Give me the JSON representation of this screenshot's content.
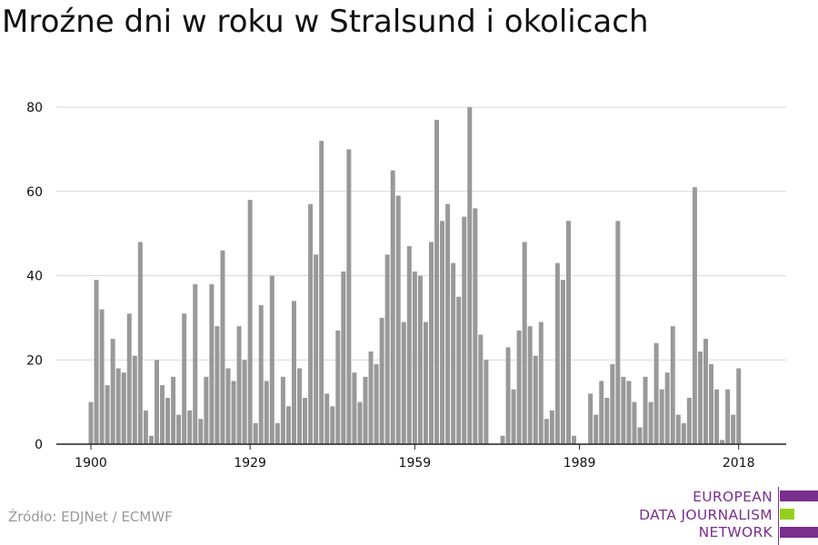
{
  "title": "Mroźne dni w roku w Stralsund i okolicach",
  "source": "Źródło: EDJNet / ECMWF",
  "logo": {
    "lines": [
      "EUROPEAN",
      "DATA JOURNALISM",
      "NETWORK"
    ],
    "colors": [
      "#7a2e8e",
      "#95d01c",
      "#7a2e8e"
    ]
  },
  "colors": {
    "bar": "#999999",
    "grid": "#d9d9d9",
    "axis": "#222222",
    "text": "#111111"
  },
  "chart_data": {
    "type": "bar",
    "title": "Mroźne dni w roku w Stralsund i okolicach",
    "xlabel": "",
    "ylabel": "",
    "ylim": [
      0,
      80
    ],
    "yticks": [
      0,
      20,
      40,
      60,
      80
    ],
    "xticks": [
      1900,
      1929,
      1959,
      1989,
      2018
    ],
    "grid": true,
    "categories": [
      1900,
      1901,
      1902,
      1903,
      1904,
      1905,
      1906,
      1907,
      1908,
      1909,
      1910,
      1911,
      1912,
      1913,
      1914,
      1915,
      1916,
      1917,
      1918,
      1919,
      1920,
      1921,
      1922,
      1923,
      1924,
      1925,
      1926,
      1927,
      1928,
      1929,
      1930,
      1931,
      1932,
      1933,
      1934,
      1935,
      1936,
      1937,
      1938,
      1939,
      1940,
      1941,
      1942,
      1943,
      1944,
      1945,
      1946,
      1947,
      1948,
      1949,
      1950,
      1951,
      1952,
      1953,
      1954,
      1955,
      1956,
      1957,
      1958,
      1959,
      1960,
      1961,
      1962,
      1963,
      1964,
      1965,
      1966,
      1967,
      1968,
      1969,
      1970,
      1971,
      1972,
      1973,
      1974,
      1975,
      1976,
      1977,
      1978,
      1979,
      1980,
      1981,
      1982,
      1983,
      1984,
      1985,
      1986,
      1987,
      1988,
      1989,
      1990,
      1991,
      1992,
      1993,
      1994,
      1995,
      1996,
      1997,
      1998,
      1999,
      2000,
      2001,
      2002,
      2003,
      2004,
      2005,
      2006,
      2007,
      2008,
      2009,
      2010,
      2011,
      2012,
      2013,
      2014,
      2015,
      2016,
      2017,
      2018
    ],
    "values": [
      10,
      39,
      32,
      14,
      25,
      18,
      17,
      31,
      21,
      48,
      8,
      2,
      20,
      14,
      11,
      16,
      7,
      31,
      8,
      38,
      6,
      16,
      38,
      28,
      46,
      18,
      15,
      28,
      20,
      58,
      5,
      33,
      15,
      40,
      5,
      16,
      9,
      34,
      18,
      11,
      57,
      45,
      72,
      12,
      9,
      27,
      41,
      70,
      17,
      10,
      16,
      22,
      19,
      30,
      45,
      65,
      59,
      29,
      47,
      41,
      40,
      29,
      48,
      77,
      53,
      57,
      43,
      35,
      54,
      80,
      56,
      26,
      20,
      0,
      0,
      2,
      23,
      13,
      27,
      48,
      28,
      21,
      29,
      6,
      8,
      43,
      39,
      53,
      2,
      0,
      0,
      12,
      7,
      15,
      11,
      19,
      53,
      16,
      15,
      10,
      4,
      16,
      10,
      24,
      13,
      17,
      28,
      7,
      5,
      11,
      61,
      22,
      25,
      19,
      13,
      1,
      13,
      7,
      18
    ]
  }
}
